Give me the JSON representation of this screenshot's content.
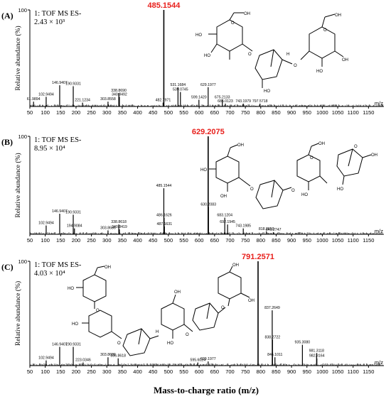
{
  "figure": {
    "xlabel": "Mass-to-charge ratio (m/z)",
    "mz_unit": "m/z",
    "ylabel": "Relative abundance (%)"
  },
  "chart_data": [
    {
      "type": "bar",
      "panel": "(A)",
      "header": "1: TOF MS ES-",
      "intensity": "2.43 × 10³",
      "xlim": [
        50,
        1200
      ],
      "ylim": [
        0,
        100
      ],
      "ytick": "100",
      "xticks": [
        50,
        100,
        150,
        200,
        250,
        300,
        350,
        400,
        450,
        500,
        550,
        600,
        650,
        700,
        750,
        800,
        850,
        900,
        950,
        1000,
        1050,
        1100,
        1150
      ],
      "base_peak": {
        "mz": 485.1544,
        "label": "485.1544",
        "value": 100
      },
      "peaks": [
        {
          "mz": 61.9894,
          "label": "61.9894",
          "value": 5
        },
        {
          "mz": 102.9494,
          "label": "102.9494",
          "value": 10
        },
        {
          "mz": 146.9407,
          "label": "146.9407",
          "value": 22
        },
        {
          "mz": 190.9331,
          "label": "190.9331",
          "value": 21
        },
        {
          "mz": 221.1234,
          "label": "221.1234",
          "value": 4
        },
        {
          "mz": 303.8558,
          "label": "303.8558",
          "value": 5
        },
        {
          "mz": 338.869,
          "label": "338.8690",
          "value": 14
        },
        {
          "mz": 340.8492,
          "label": "340.8492",
          "value": 10
        },
        {
          "mz": 482.7971,
          "label": "482.7971",
          "value": 4
        },
        {
          "mz": 531.1684,
          "label": "531.1684",
          "value": 20
        },
        {
          "mz": 539.0745,
          "label": "539.0745",
          "value": 15
        },
        {
          "mz": 599.142,
          "label": "599.1420",
          "value": 7
        },
        {
          "mz": 629.1977,
          "label": "629.1977",
          "value": 20
        },
        {
          "mz": 675.2133,
          "label": "675.2133",
          "value": 7
        },
        {
          "mz": 685.0123,
          "label": "685.0123",
          "value": 3
        },
        {
          "mz": 743.1979,
          "label": "743.1979",
          "value": 3
        },
        {
          "mz": 797.5718,
          "label": "797.5718",
          "value": 3
        }
      ]
    },
    {
      "type": "bar",
      "panel": "(B)",
      "header": "1: TOF MS ES-",
      "intensity": "8.95 × 10⁴",
      "xlim": [
        50,
        1200
      ],
      "ylim": [
        0,
        100
      ],
      "ytick": "100",
      "xticks": [
        50,
        100,
        150,
        200,
        250,
        300,
        350,
        400,
        450,
        500,
        550,
        600,
        650,
        700,
        750,
        800,
        850,
        900,
        950,
        1000,
        1050,
        1100,
        1150
      ],
      "base_peak": {
        "mz": 629.2075,
        "label": "629.2075",
        "value": 100
      },
      "peaks": [
        {
          "mz": 102.9494,
          "label": "102.9494",
          "value": 9
        },
        {
          "mz": 146.9407,
          "label": "146.9407",
          "value": 21
        },
        {
          "mz": 190.9331,
          "label": "190.9331",
          "value": 20
        },
        {
          "mz": 194.9084,
          "label": "194.9084",
          "value": 6
        },
        {
          "mz": 303.8686,
          "label": "303.8686",
          "value": 4
        },
        {
          "mz": 338.8618,
          "label": "338.8618",
          "value": 10
        },
        {
          "mz": 340.8419,
          "label": "340.8419",
          "value": 5
        },
        {
          "mz": 485.1544,
          "label": "485.1544",
          "value": 47
        },
        {
          "mz": 486.1626,
          "label": "486.1626",
          "value": 17
        },
        {
          "mz": 487.1631,
          "label": "487.1631",
          "value": 8
        },
        {
          "mz": 630.2083,
          "label": "630.2083",
          "value": 28
        },
        {
          "mz": 683.1204,
          "label": "683.1204",
          "value": 17
        },
        {
          "mz": 692.1945,
          "label": "692.1945",
          "value": 10
        },
        {
          "mz": 743.1985,
          "label": "743.1985",
          "value": 6
        },
        {
          "mz": 818.265,
          "label": "818.2650",
          "value": 3
        },
        {
          "mz": 841.2747,
          "label": "841.2747",
          "value": 2
        }
      ]
    },
    {
      "type": "bar",
      "panel": "(C)",
      "header": "1: TOF MS ES-",
      "intensity": "4.03 × 10⁴",
      "xlim": [
        50,
        1200
      ],
      "ylim": [
        0,
        100
      ],
      "ytick": "100",
      "xticks": [
        50,
        100,
        150,
        200,
        250,
        300,
        350,
        400,
        450,
        500,
        550,
        600,
        650,
        700,
        750,
        800,
        850,
        900,
        950,
        1000,
        1050,
        1100,
        1150
      ],
      "base_peak": {
        "mz": 791.2571,
        "label": "791.2571",
        "value": 100
      },
      "peaks": [
        {
          "mz": 102.9494,
          "label": "102.9494",
          "value": 5
        },
        {
          "mz": 146.9407,
          "label": "146.9407",
          "value": 18
        },
        {
          "mz": 190.9331,
          "label": "190.9331",
          "value": 18
        },
        {
          "mz": 223.0346,
          "label": "223.0346",
          "value": 3
        },
        {
          "mz": 303.8686,
          "label": "303.8686",
          "value": 8
        },
        {
          "mz": 336.8618,
          "label": "336.8618",
          "value": 7
        },
        {
          "mz": 595.6024,
          "label": "595.6024",
          "value": 3
        },
        {
          "mz": 629.1977,
          "label": "629.1977",
          "value": 4
        },
        {
          "mz": 837.2649,
          "label": "837.2649",
          "value": 53
        },
        {
          "mz": 838.2722,
          "label": "838.2722",
          "value": 25
        },
        {
          "mz": 846.1011,
          "label": "846.1011",
          "value": 8
        },
        {
          "mz": 935.308,
          "label": "935.3080",
          "value": 20
        },
        {
          "mz": 981.3118,
          "label": "981.3118",
          "value": 12
        },
        {
          "mz": 982.3164,
          "label": "982.3164",
          "value": 7
        }
      ]
    }
  ],
  "structures": {
    "labels": {
      "oh": "OH",
      "ho": "HO",
      "o": "O",
      "h": "H"
    }
  }
}
